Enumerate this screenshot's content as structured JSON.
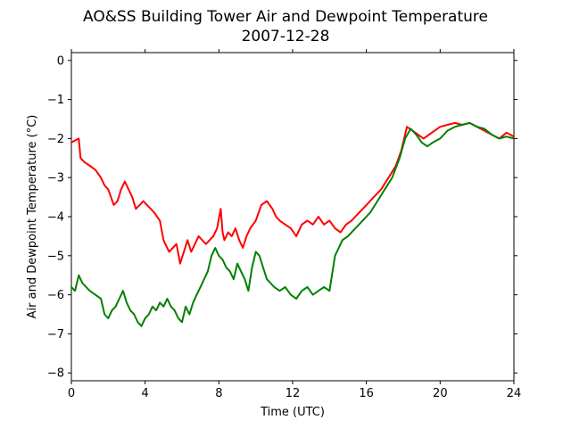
{
  "chart_data": {
    "type": "line",
    "title": "AO&SS Building Tower Air and Dewpoint Temperature",
    "subtitle": "2007-12-28",
    "xlabel": "Time (UTC)",
    "ylabel": "Air and Dewpoint Temperature (°C)",
    "xlim": [
      0,
      24
    ],
    "ylim": [
      -8.2,
      0.2
    ],
    "x_ticks": [
      0,
      4,
      8,
      12,
      16,
      20,
      24
    ],
    "x_tick_labels": [
      "0",
      "4",
      "8",
      "12",
      "16",
      "20",
      "24"
    ],
    "y_ticks": [
      0,
      -1,
      -2,
      -3,
      -4,
      -5,
      -6,
      -7,
      -8
    ],
    "y_tick_labels": [
      "0",
      "−1",
      "−2",
      "−3",
      "−4",
      "−5",
      "−6",
      "−7",
      "−8"
    ],
    "grid": false,
    "series": [
      {
        "color": "#ff0000",
        "x": [
          0,
          0.2,
          0.4,
          0.5,
          0.7,
          1.0,
          1.3,
          1.6,
          1.8,
          2.0,
          2.3,
          2.5,
          2.7,
          2.9,
          3.1,
          3.3,
          3.5,
          3.7,
          3.9,
          4.1,
          4.3,
          4.5,
          4.8,
          5.0,
          5.3,
          5.5,
          5.7,
          5.9,
          6.1,
          6.3,
          6.5,
          6.7,
          6.9,
          7.1,
          7.3,
          7.5,
          7.7,
          7.9,
          8.1,
          8.2,
          8.3,
          8.5,
          8.7,
          8.9,
          9.1,
          9.3,
          9.5,
          9.7,
          10.0,
          10.3,
          10.6,
          10.9,
          11.1,
          11.3,
          11.6,
          11.9,
          12.2,
          12.5,
          12.8,
          13.1,
          13.4,
          13.7,
          14.0,
          14.3,
          14.6,
          14.9,
          15.2,
          15.6,
          16.0,
          16.4,
          16.8,
          17.2,
          17.6,
          17.9,
          18.2,
          18.5,
          18.8,
          19.1,
          19.4,
          19.7,
          20.0,
          20.4,
          20.8,
          21.2,
          21.6,
          22.0,
          22.4,
          22.8,
          23.2,
          23.6,
          24.0
        ],
        "values": [
          -2.1,
          -2.05,
          -2.0,
          -2.5,
          -2.6,
          -2.7,
          -2.8,
          -3.0,
          -3.2,
          -3.3,
          -3.7,
          -3.6,
          -3.3,
          -3.1,
          -3.3,
          -3.5,
          -3.8,
          -3.7,
          -3.6,
          -3.7,
          -3.8,
          -3.9,
          -4.1,
          -4.6,
          -4.9,
          -4.8,
          -4.7,
          -5.2,
          -4.9,
          -4.6,
          -4.9,
          -4.7,
          -4.5,
          -4.6,
          -4.7,
          -4.6,
          -4.5,
          -4.3,
          -3.8,
          -4.4,
          -4.6,
          -4.4,
          -4.5,
          -4.3,
          -4.6,
          -4.8,
          -4.5,
          -4.3,
          -4.1,
          -3.7,
          -3.6,
          -3.8,
          -4.0,
          -4.1,
          -4.2,
          -4.3,
          -4.5,
          -4.2,
          -4.1,
          -4.2,
          -4.0,
          -4.2,
          -4.1,
          -4.3,
          -4.4,
          -4.2,
          -4.1,
          -3.9,
          -3.7,
          -3.5,
          -3.3,
          -3.0,
          -2.7,
          -2.3,
          -1.7,
          -1.8,
          -1.9,
          -2.0,
          -1.9,
          -1.8,
          -1.7,
          -1.65,
          -1.6,
          -1.65,
          -1.6,
          -1.7,
          -1.8,
          -1.9,
          -2.0,
          -1.85,
          -1.95
        ]
      },
      {
        "color": "#008000",
        "x": [
          0,
          0.2,
          0.4,
          0.6,
          0.8,
          1.0,
          1.3,
          1.6,
          1.8,
          2.0,
          2.2,
          2.4,
          2.6,
          2.8,
          3.0,
          3.2,
          3.4,
          3.6,
          3.8,
          4.0,
          4.2,
          4.4,
          4.6,
          4.8,
          5.0,
          5.2,
          5.4,
          5.6,
          5.8,
          6.0,
          6.2,
          6.4,
          6.6,
          6.8,
          7.0,
          7.2,
          7.4,
          7.6,
          7.8,
          8.0,
          8.2,
          8.4,
          8.6,
          8.8,
          9.0,
          9.2,
          9.4,
          9.6,
          9.8,
          10.0,
          10.2,
          10.4,
          10.6,
          10.8,
          11.0,
          11.3,
          11.6,
          11.9,
          12.2,
          12.5,
          12.8,
          13.1,
          13.4,
          13.7,
          14.0,
          14.3,
          14.5,
          14.7,
          15.0,
          15.4,
          15.8,
          16.2,
          16.6,
          17.0,
          17.4,
          17.8,
          18.1,
          18.4,
          18.7,
          19.0,
          19.3,
          19.6,
          20.0,
          20.4,
          20.8,
          21.2,
          21.6,
          22.0,
          22.4,
          22.8,
          23.2,
          23.6,
          24.0
        ],
        "values": [
          -5.8,
          -5.9,
          -5.5,
          -5.7,
          -5.8,
          -5.9,
          -6.0,
          -6.1,
          -6.5,
          -6.6,
          -6.4,
          -6.3,
          -6.1,
          -5.9,
          -6.2,
          -6.4,
          -6.5,
          -6.7,
          -6.8,
          -6.6,
          -6.5,
          -6.3,
          -6.4,
          -6.2,
          -6.3,
          -6.1,
          -6.3,
          -6.4,
          -6.6,
          -6.7,
          -6.3,
          -6.5,
          -6.2,
          -6.0,
          -5.8,
          -5.6,
          -5.4,
          -5.0,
          -4.8,
          -5.0,
          -5.1,
          -5.3,
          -5.4,
          -5.6,
          -5.2,
          -5.4,
          -5.6,
          -5.9,
          -5.3,
          -4.9,
          -5.0,
          -5.3,
          -5.6,
          -5.7,
          -5.8,
          -5.9,
          -5.8,
          -6.0,
          -6.1,
          -5.9,
          -5.8,
          -6.0,
          -5.9,
          -5.8,
          -5.9,
          -5.0,
          -4.8,
          -4.6,
          -4.5,
          -4.3,
          -4.1,
          -3.9,
          -3.6,
          -3.3,
          -3.0,
          -2.5,
          -2.0,
          -1.75,
          -1.9,
          -2.1,
          -2.2,
          -2.1,
          -2.0,
          -1.8,
          -1.7,
          -1.65,
          -1.6,
          -1.7,
          -1.75,
          -1.9,
          -2.0,
          -1.95,
          -2.0
        ]
      }
    ]
  }
}
